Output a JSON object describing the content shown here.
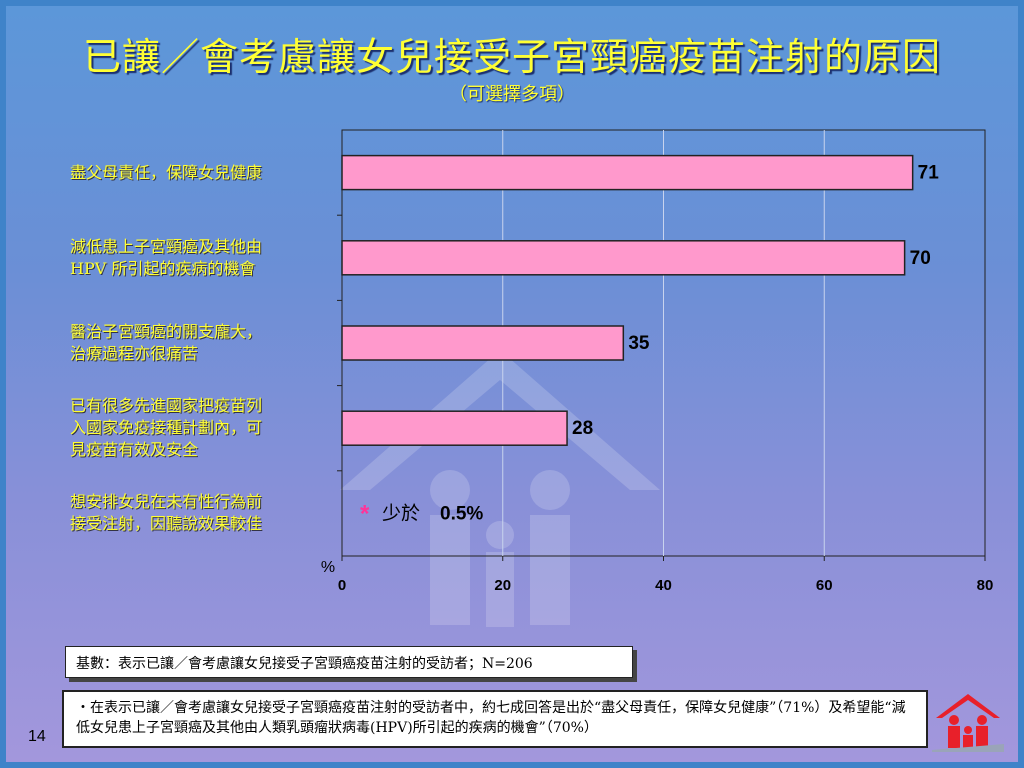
{
  "title": "已讓／會考慮讓女兒接受子宮頸癌疫苗注射的原因",
  "subtitle": "（可選擇多項）",
  "chart_data": {
    "type": "bar",
    "orientation": "horizontal",
    "categories": [
      "盡父母責任，保障女兒健康",
      "減低患上子宮頸癌及其他由 HPV 所引起的疾病的機會",
      "醫治子宮頸癌的開支龐大，治療過程亦很痛苦",
      "已有很多先進國家把疫苗列入國家免疫接種計劃內，可見疫苗有效及安全",
      "想安排女兒在未有性行為前接受注射，因聽說效果較佳"
    ],
    "category_lines": [
      [
        "盡父母責任，保障女兒健康"
      ],
      [
        "減低患上子宮頸癌及其他由",
        "HPV 所引起的疾病的機會"
      ],
      [
        "醫治子宮頸癌的開支龐大，",
        "治療過程亦很痛苦"
      ],
      [
        "已有很多先進國家把疫苗列",
        "入國家免疫接種計劃內，可",
        "見疫苗有效及安全"
      ],
      [
        "想安排女兒在未有性行為前",
        "接受注射，因聽說效果較佳"
      ]
    ],
    "values": [
      71,
      70,
      35,
      28,
      null
    ],
    "value_labels": [
      "71",
      "70",
      "35",
      "28",
      ""
    ],
    "small_value_note": {
      "star": "*",
      "text": "少於",
      "value": "0.5%"
    },
    "xlim": [
      0,
      80
    ],
    "xticks": [
      "0",
      "20",
      "40",
      "60",
      "80"
    ],
    "xlabel": "%",
    "grid": true,
    "bar_color": "#ff99cc",
    "bar_edge": "#222222"
  },
  "base_note": "基數：表示已讓／會考慮讓女兒接受子宮頸癌疫苗注射的受訪者；N=206",
  "summary": "・在表示已讓／會考慮讓女兒接受子宮頸癌疫苗注射的受訪者中，約七成回答是出於“盡父母責任，保障女兒健康”（71%）及希望能“減低女兒患上子宮頸癌及其他由人類乳頭瘤狀病毒(HPV)所引起的疾病的機會”（70%）",
  "page_number": "14",
  "colors": {
    "title": "#ffff33",
    "label": "#ffff33",
    "star": "#ff3399"
  }
}
